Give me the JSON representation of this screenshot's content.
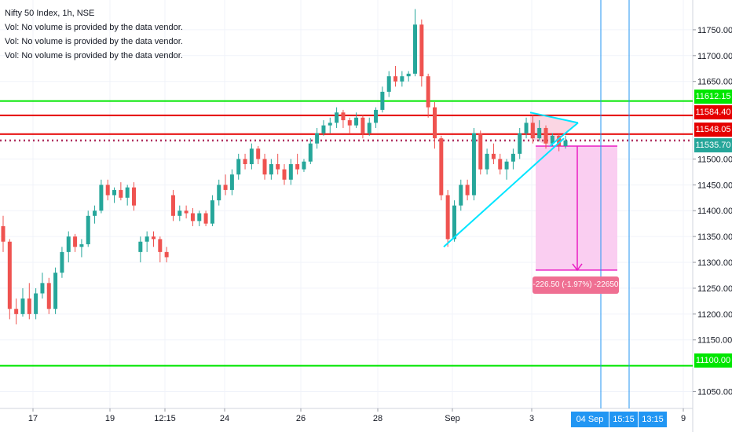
{
  "legend": {
    "title": "Nifty 50 Index, 1h, NSE",
    "vol_lines": [
      "Vol: No volume is provided by the data vendor.",
      "Vol: No volume is provided by the data vendor.",
      "Vol: No volume is provided by the data vendor."
    ]
  },
  "price_axis": {
    "ticks": [
      "11750.00",
      "11700.00",
      "11650.00",
      "11500.00",
      "11450.00",
      "11400.00",
      "11350.00",
      "11300.00",
      "11250.00",
      "11200.00",
      "11150.00",
      "11050.00"
    ],
    "labels": {
      "green_top": "11612.15",
      "red_top": "11584.40",
      "red_mid": "11548.05",
      "current": "11535.70",
      "green_bottom": "11100.00"
    }
  },
  "time_axis": {
    "labels": [
      "17",
      "19",
      "12:15",
      "24",
      "26",
      "28",
      "Sep",
      "3",
      "9"
    ],
    "highlighted": [
      "04 Sep '20",
      "15:15",
      "13:15"
    ]
  },
  "measure": {
    "label": "-226.50 (-1.97%) -22650"
  },
  "colors": {
    "up": "#26a69a",
    "down": "#ef5350",
    "support": "#00e600",
    "resistance": "#e50000",
    "trendline": "#00e5ff",
    "measure_fill": "#f9c5ef",
    "measure_line": "#e91ec4",
    "vertical_line": "#2196f3"
  },
  "chart_data": {
    "type": "candlestick",
    "ylim": [
      11025,
      11800
    ],
    "levels": [
      11612.15,
      11584.4,
      11548.05,
      11535.7,
      11100
    ],
    "candles": [
      [
        11370,
        11390,
        11320,
        11340
      ],
      [
        11340,
        11345,
        11190,
        11210
      ],
      [
        11210,
        11230,
        11180,
        11200
      ],
      [
        11200,
        11250,
        11195,
        11230
      ],
      [
        11230,
        11260,
        11190,
        11200
      ],
      [
        11200,
        11250,
        11190,
        11240
      ],
      [
        11240,
        11280,
        11230,
        11260
      ],
      [
        11260,
        11270,
        11200,
        11210
      ],
      [
        11210,
        11290,
        11200,
        11280
      ],
      [
        11280,
        11330,
        11270,
        11320
      ],
      [
        11320,
        11360,
        11300,
        11350
      ],
      [
        11350,
        11355,
        11320,
        11330
      ],
      [
        11330,
        11345,
        11310,
        11335
      ],
      [
        11335,
        11400,
        11330,
        11390
      ],
      [
        11390,
        11410,
        11375,
        11400
      ],
      [
        11400,
        11460,
        11395,
        11450
      ],
      [
        11450,
        11460,
        11420,
        11430
      ],
      [
        11430,
        11445,
        11415,
        11440
      ],
      [
        11440,
        11455,
        11420,
        11425
      ],
      [
        11425,
        11450,
        11410,
        11445
      ],
      [
        11445,
        11455,
        11400,
        11410
      ],
      [
        11320,
        11350,
        11300,
        11340
      ],
      [
        11340,
        11360,
        11320,
        11350
      ],
      [
        11350,
        11360,
        11330,
        11345
      ],
      [
        11345,
        11350,
        11300,
        11320
      ],
      [
        11320,
        11330,
        11300,
        11310
      ],
      [
        11430,
        11440,
        11380,
        11390
      ],
      [
        11390,
        11410,
        11380,
        11400
      ],
      [
        11400,
        11410,
        11385,
        11395
      ],
      [
        11395,
        11405,
        11370,
        11380
      ],
      [
        11380,
        11400,
        11370,
        11395
      ],
      [
        11395,
        11400,
        11370,
        11375
      ],
      [
        11375,
        11430,
        11370,
        11420
      ],
      [
        11420,
        11460,
        11410,
        11450
      ],
      [
        11450,
        11470,
        11430,
        11440
      ],
      [
        11440,
        11480,
        11430,
        11470
      ],
      [
        11470,
        11510,
        11460,
        11500
      ],
      [
        11500,
        11510,
        11480,
        11490
      ],
      [
        11490,
        11530,
        11480,
        11520
      ],
      [
        11520,
        11525,
        11490,
        11500
      ],
      [
        11500,
        11510,
        11460,
        11470
      ],
      [
        11470,
        11500,
        11460,
        11490
      ],
      [
        11490,
        11510,
        11470,
        11480
      ],
      [
        11480,
        11490,
        11450,
        11460
      ],
      [
        11460,
        11500,
        11450,
        11490
      ],
      [
        11490,
        11510,
        11470,
        11480
      ],
      [
        11480,
        11500,
        11475,
        11495
      ],
      [
        11495,
        11540,
        11490,
        11530
      ],
      [
        11530,
        11560,
        11520,
        11550
      ],
      [
        11550,
        11575,
        11545,
        11565
      ],
      [
        11565,
        11580,
        11550,
        11570
      ],
      [
        11570,
        11600,
        11560,
        11590
      ],
      [
        11590,
        11595,
        11560,
        11575
      ],
      [
        11575,
        11580,
        11550,
        11565
      ],
      [
        11565,
        11590,
        11560,
        11580
      ],
      [
        11580,
        11585,
        11540,
        11550
      ],
      [
        11550,
        11580,
        11545,
        11570
      ],
      [
        11570,
        11600,
        11560,
        11595
      ],
      [
        11595,
        11640,
        11590,
        11630
      ],
      [
        11630,
        11670,
        11620,
        11660
      ],
      [
        11660,
        11680,
        11640,
        11650
      ],
      [
        11650,
        11670,
        11640,
        11660
      ],
      [
        11660,
        11670,
        11650,
        11665
      ],
      [
        11665,
        11790,
        11660,
        11760
      ],
      [
        11760,
        11770,
        11640,
        11660
      ],
      [
        11660,
        11665,
        11580,
        11600
      ],
      [
        11600,
        11610,
        11520,
        11540
      ],
      [
        11540,
        11545,
        11420,
        11430
      ],
      [
        11430,
        11440,
        11330,
        11345
      ],
      [
        11345,
        11420,
        11340,
        11410
      ],
      [
        11410,
        11460,
        11400,
        11450
      ],
      [
        11450,
        11460,
        11420,
        11430
      ],
      [
        11430,
        11560,
        11420,
        11550
      ],
      [
        11550,
        11555,
        11470,
        11480
      ],
      [
        11480,
        11520,
        11470,
        11510
      ],
      [
        11510,
        11530,
        11490,
        11500
      ],
      [
        11500,
        11510,
        11470,
        11480
      ],
      [
        11480,
        11500,
        11460,
        11495
      ],
      [
        11495,
        11520,
        11480,
        11510
      ],
      [
        11510,
        11560,
        11500,
        11550
      ],
      [
        11550,
        11580,
        11540,
        11570
      ],
      [
        11570,
        11585,
        11530,
        11540
      ],
      [
        11540,
        11575,
        11535,
        11560
      ],
      [
        11560,
        11565,
        11520,
        11530
      ],
      [
        11530,
        11550,
        11525,
        11545
      ],
      [
        11545,
        11548,
        11515,
        11525
      ],
      [
        11525,
        11545,
        11520,
        11536
      ]
    ]
  }
}
